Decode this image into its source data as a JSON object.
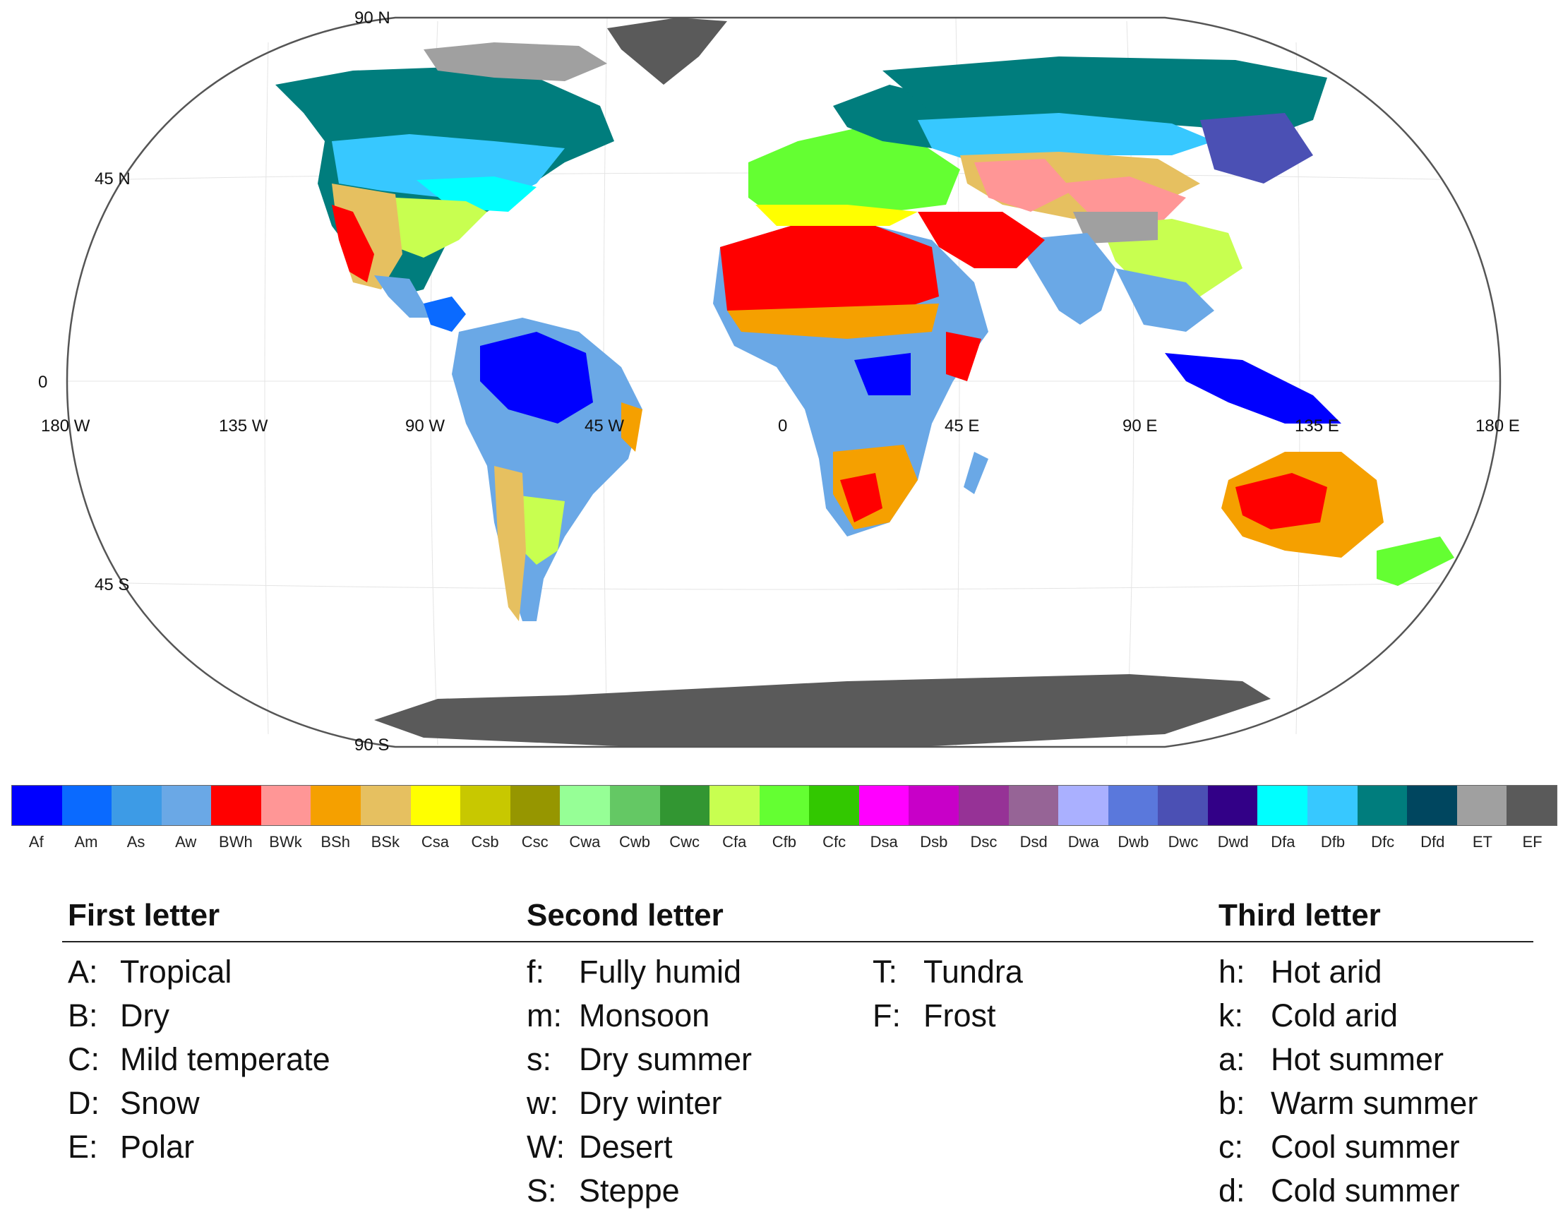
{
  "map": {
    "lat_labels": [
      "90 N",
      "45 N",
      "0",
      "45 S",
      "90 S"
    ],
    "lon_labels": [
      "180 W",
      "135 W",
      "90 W",
      "45 W",
      "0",
      "45 E",
      "90 E",
      "135 E",
      "180 E"
    ],
    "colors": {
      "frame": "#555555",
      "ocean": "#ffffff",
      "polar_ice": "#5a5a5a",
      "tundra": "#a6a6a6"
    }
  },
  "legend": {
    "classes": [
      {
        "code": "Af",
        "color": "#0000ff"
      },
      {
        "code": "Am",
        "color": "#0a6aff"
      },
      {
        "code": "As",
        "color": "#3d9be6"
      },
      {
        "code": "Aw",
        "color": "#6aa8e6"
      },
      {
        "code": "BWh",
        "color": "#ff0000"
      },
      {
        "code": "BWk",
        "color": "#ff9696"
      },
      {
        "code": "BSh",
        "color": "#f5a000"
      },
      {
        "code": "BSk",
        "color": "#e6c060"
      },
      {
        "code": "Csa",
        "color": "#ffff00"
      },
      {
        "code": "Csb",
        "color": "#c8c800"
      },
      {
        "code": "Csc",
        "color": "#969600"
      },
      {
        "code": "Cwa",
        "color": "#96ff96"
      },
      {
        "code": "Cwb",
        "color": "#64c864"
      },
      {
        "code": "Cwc",
        "color": "#329632"
      },
      {
        "code": "Cfa",
        "color": "#c8ff50"
      },
      {
        "code": "Cfb",
        "color": "#64ff32"
      },
      {
        "code": "Cfc",
        "color": "#32c800"
      },
      {
        "code": "Dsa",
        "color": "#ff00ff"
      },
      {
        "code": "Dsb",
        "color": "#c800c8"
      },
      {
        "code": "Dsc",
        "color": "#963296"
      },
      {
        "code": "Dsd",
        "color": "#966496"
      },
      {
        "code": "Dwa",
        "color": "#aab0ff"
      },
      {
        "code": "Dwb",
        "color": "#5a78dc"
      },
      {
        "code": "Dwc",
        "color": "#4b50b4"
      },
      {
        "code": "Dwd",
        "color": "#320087"
      },
      {
        "code": "Dfa",
        "color": "#00ffff"
      },
      {
        "code": "Dfb",
        "color": "#37c8ff"
      },
      {
        "code": "Dfc",
        "color": "#007d7d"
      },
      {
        "code": "Dfd",
        "color": "#00465f"
      },
      {
        "code": "ET",
        "color": "#a0a0a0"
      },
      {
        "code": "EF",
        "color": "#5a5a5a"
      }
    ]
  },
  "key": {
    "first": {
      "heading": "First letter",
      "items": [
        {
          "code": "A:",
          "desc": "Tropical"
        },
        {
          "code": "B:",
          "desc": "Dry"
        },
        {
          "code": "C:",
          "desc": "Mild temperate"
        },
        {
          "code": "D:",
          "desc": "Snow"
        },
        {
          "code": "E:",
          "desc": "Polar"
        }
      ]
    },
    "second": {
      "heading": "Second letter",
      "items": [
        {
          "code": "f:",
          "desc": "Fully humid"
        },
        {
          "code": "m:",
          "desc": "Monsoon"
        },
        {
          "code": "s:",
          "desc": "Dry summer"
        },
        {
          "code": "w:",
          "desc": "Dry winter"
        },
        {
          "code": "W:",
          "desc": "Desert"
        },
        {
          "code": "S:",
          "desc": "Steppe"
        }
      ],
      "extra_items": [
        {
          "code": "T:",
          "desc": "Tundra"
        },
        {
          "code": "F:",
          "desc": "Frost"
        }
      ]
    },
    "third": {
      "heading": "Third letter",
      "items": [
        {
          "code": "h:",
          "desc": "Hot arid"
        },
        {
          "code": "k:",
          "desc": "Cold arid"
        },
        {
          "code": "a:",
          "desc": "Hot summer"
        },
        {
          "code": "b:",
          "desc": "Warm summer"
        },
        {
          "code": "c:",
          "desc": "Cool summer"
        },
        {
          "code": "d:",
          "desc": "Cold summer"
        }
      ]
    }
  }
}
